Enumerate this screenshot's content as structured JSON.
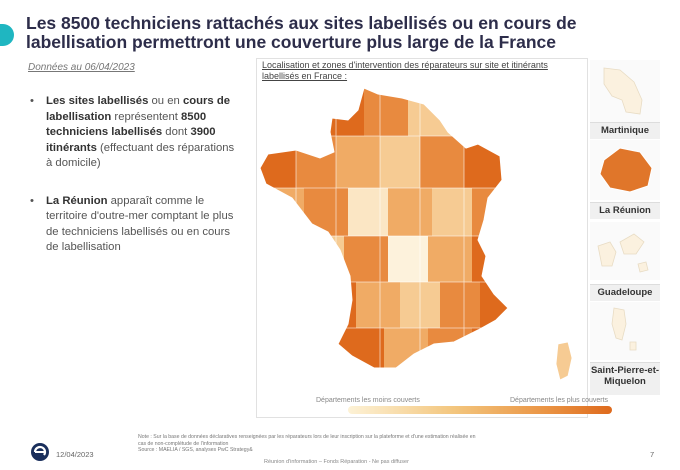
{
  "title": "Les 8500 techniciens rattachés aux sites labellisés ou en cours de labellisation permettront une couverture plus large de la France",
  "subtitle": "Données au 06/04/2023",
  "bullets": [
    {
      "parts": [
        {
          "text": "Les sites labellisés",
          "bold": true
        },
        {
          "text": " ou en ",
          "bold": false
        },
        {
          "text": "cours de labellisation",
          "bold": true
        },
        {
          "text": " représentent ",
          "bold": false
        },
        {
          "text": "8500 techniciens labellisés",
          "bold": true
        },
        {
          "text": " dont ",
          "bold": false
        },
        {
          "text": "3900 itinérants",
          "bold": true
        },
        {
          "text": " (effectuant des réparations à domicile)",
          "bold": false
        }
      ]
    },
    {
      "parts": [
        {
          "text": "La Réunion",
          "bold": true
        },
        {
          "text": " apparaît comme le territoire d'outre-mer comptant le plus de techniciens labellisés ou en cours de labellisation",
          "bold": false
        }
      ]
    }
  ],
  "map": {
    "caption": "Localisation et zones d'intervention des réparateurs sur site et itinérants labellisés en France :",
    "legend_less": "Départements les moins couverts",
    "legend_more": "Départements les plus couverts",
    "colors": {
      "darkest": "#de6a1d",
      "dark": "#e88a3f",
      "medium": "#f0ab65",
      "light": "#f6cb93",
      "lightest": "#fbe6c4",
      "pale": "#fdf2dc"
    }
  },
  "overseas": [
    {
      "name": "Martinique",
      "coverage": "low"
    },
    {
      "name": "La Réunion",
      "coverage": "high"
    },
    {
      "name": "Guadeloupe",
      "coverage": "low"
    },
    {
      "name": "Saint-Pierre-et-Miquelon",
      "coverage": "low"
    }
  ],
  "footer": {
    "note_lines": [
      "Note : Sur la base de données déclaratives renseignées par les réparateurs lors de leur inscription sur la plateforme et d'une estimation réalisée en",
      "cas de non-complétude de l'information",
      "Source : MAELIA / SGS, analyses PwC Strategy&"
    ],
    "date": "12/04/2023",
    "center_text": "Réunion d'information – Fonds Réparation - Ne pas diffuser",
    "page_number": "7"
  }
}
